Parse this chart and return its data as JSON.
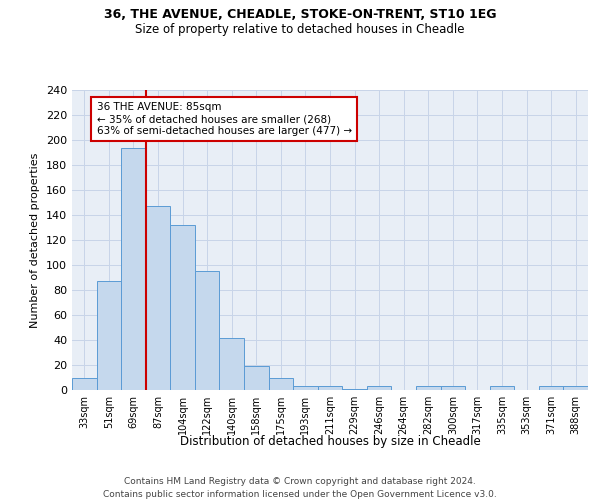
{
  "title_line1": "36, THE AVENUE, CHEADLE, STOKE-ON-TRENT, ST10 1EG",
  "title_line2": "Size of property relative to detached houses in Cheadle",
  "xlabel": "Distribution of detached houses by size in Cheadle",
  "ylabel": "Number of detached properties",
  "categories": [
    "33sqm",
    "51sqm",
    "69sqm",
    "87sqm",
    "104sqm",
    "122sqm",
    "140sqm",
    "158sqm",
    "175sqm",
    "193sqm",
    "211sqm",
    "229sqm",
    "246sqm",
    "264sqm",
    "282sqm",
    "300sqm",
    "317sqm",
    "335sqm",
    "353sqm",
    "371sqm",
    "388sqm"
  ],
  "values": [
    10,
    87,
    194,
    147,
    132,
    95,
    42,
    19,
    10,
    3,
    3,
    1,
    3,
    0,
    3,
    3,
    0,
    3,
    0,
    3,
    3
  ],
  "bar_color": "#c5d8ed",
  "bar_edge_color": "#5b9bd5",
  "annotation_box_text": "36 THE AVENUE: 85sqm\n← 35% of detached houses are smaller (268)\n63% of semi-detached houses are larger (477) →",
  "ylim": [
    0,
    240
  ],
  "yticks": [
    0,
    20,
    40,
    60,
    80,
    100,
    120,
    140,
    160,
    180,
    200,
    220,
    240
  ],
  "footnote_line1": "Contains HM Land Registry data © Crown copyright and database right 2024.",
  "footnote_line2": "Contains public sector information licensed under the Open Government Licence v3.0.",
  "box_color": "#ffffff",
  "box_edge_color": "#cc0000",
  "vline_color": "#cc0000",
  "grid_color": "#c8d4e8",
  "bg_color": "#e8eef6"
}
